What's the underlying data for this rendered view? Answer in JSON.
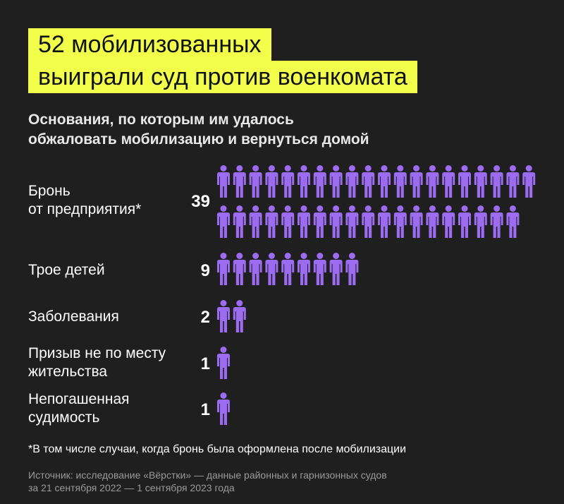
{
  "title": {
    "line1": "52 мобилизованных",
    "line2": "выиграли суд против военкомата"
  },
  "subtitle": {
    "line1": "Основания, по которым им удалось",
    "line2": "обжаловать мобилизацию и вернуться домой"
  },
  "chart_data": {
    "type": "pictogram",
    "icon": "person-icon",
    "icon_color": "#9b6cf0",
    "unit": "1 icon = 1 person",
    "categories": [
      "Бронь от предприятия*",
      "Трое детей",
      "Заболевания",
      "Призыв не по месту жительства",
      "Непогашенная судимость"
    ],
    "values": [
      39,
      9,
      2,
      1,
      1
    ]
  },
  "rows": [
    {
      "label_lines": [
        "Бронь",
        "от предприятия*"
      ],
      "value": "39"
    },
    {
      "label_lines": [
        "Трое детей"
      ],
      "value": "9"
    },
    {
      "label_lines": [
        "Заболевания"
      ],
      "value": "2"
    },
    {
      "label_lines": [
        "Призыв не по месту",
        "жительства"
      ],
      "value": "1"
    },
    {
      "label_lines": [
        "Непогашенная",
        "судимость"
      ],
      "value": "1"
    }
  ],
  "footnote": "*В том числе случаи, когда бронь была оформлена после мобилизации",
  "source": {
    "line1": "Источник: исследование «Вёрстки» — данные районных и гарнизонных судов",
    "line2": "за 21 сентября 2022 — 1 сентября 2023 года"
  }
}
